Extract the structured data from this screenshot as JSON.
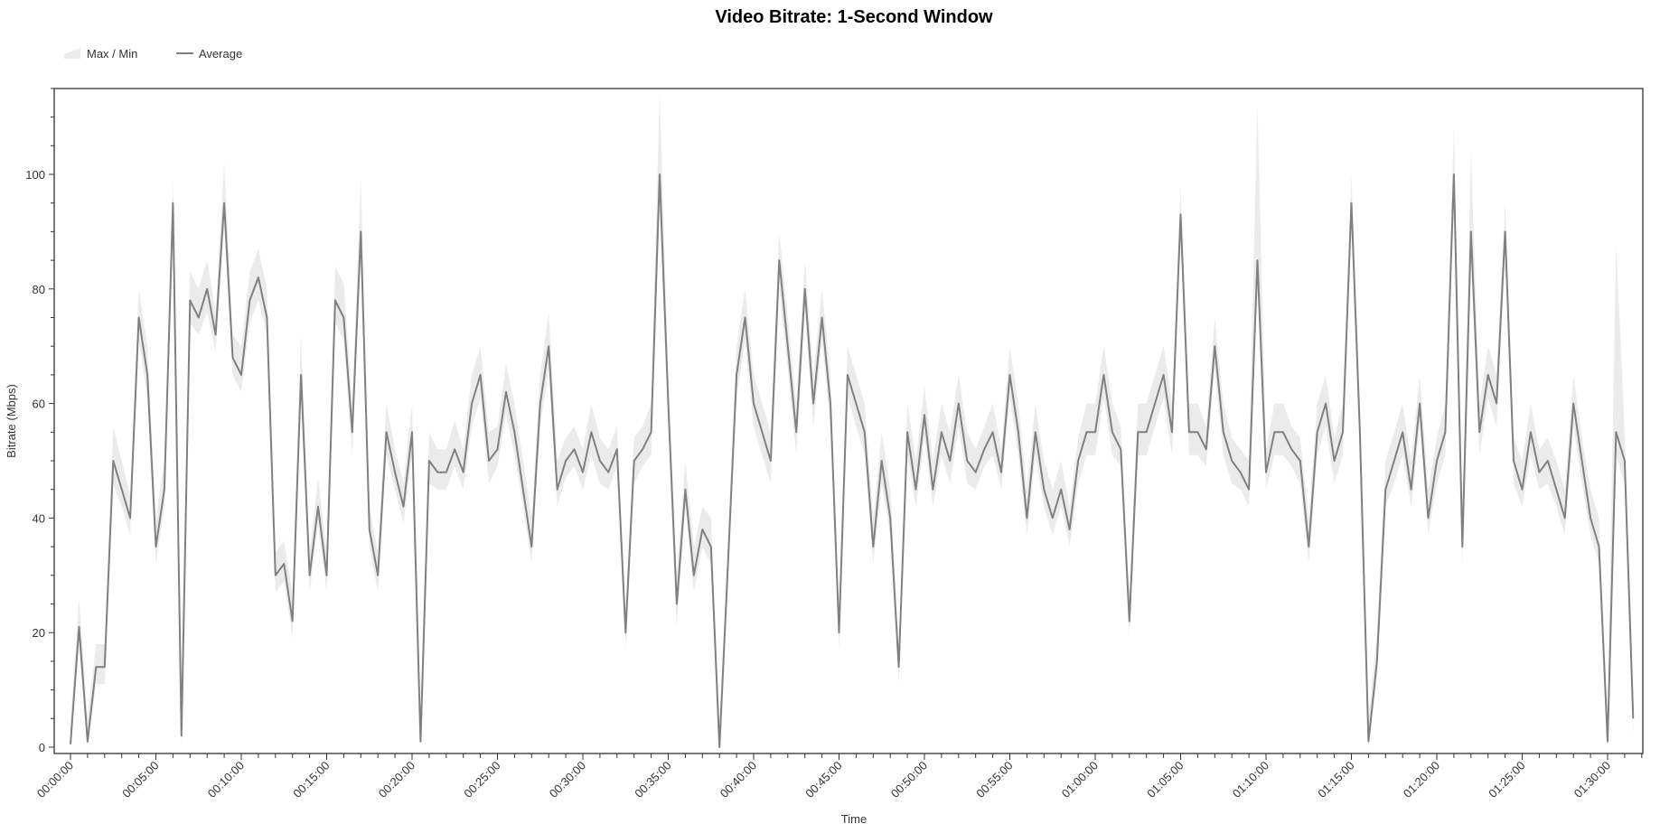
{
  "chart_data": {
    "type": "line",
    "title": "Video Bitrate: 1-Second Window",
    "xlabel": "Time",
    "ylabel": "Bitrate (Mbps)",
    "ylim": [
      0,
      115
    ],
    "y_ticks": [
      "0",
      "20",
      "40",
      "60",
      "80",
      "100"
    ],
    "x_ticks": [
      "00:00:00",
      "00:05:00",
      "00:10:00",
      "00:15:00",
      "00:20:00",
      "00:25:00",
      "00:30:00",
      "00:35:00",
      "00:40:00",
      "00:45:00",
      "00:50:00",
      "00:55:00",
      "01:00:00",
      "01:05:00",
      "01:10:00",
      "01:15:00",
      "01:20:00",
      "01:25:00",
      "01:30:00"
    ],
    "grid": false,
    "legend_position": "top-left",
    "legend": [
      "Max / Min",
      "Average"
    ],
    "colors": {
      "average": "#808080",
      "band": "#ebebeb"
    },
    "x": [
      "00:00:00",
      "00:00:30",
      "00:01:00",
      "00:01:30",
      "00:02:00",
      "00:02:30",
      "00:03:00",
      "00:03:30",
      "00:04:00",
      "00:04:30",
      "00:05:00",
      "00:05:30",
      "00:06:00",
      "00:06:30",
      "00:07:00",
      "00:07:30",
      "00:08:00",
      "00:08:30",
      "00:09:00",
      "00:09:30",
      "00:10:00",
      "00:10:30",
      "00:11:00",
      "00:11:30",
      "00:12:00",
      "00:12:30",
      "00:13:00",
      "00:13:30",
      "00:14:00",
      "00:14:30",
      "00:15:00",
      "00:15:30",
      "00:16:00",
      "00:16:30",
      "00:17:00",
      "00:17:30",
      "00:18:00",
      "00:18:30",
      "00:19:00",
      "00:19:30",
      "00:20:00",
      "00:20:30",
      "00:21:00",
      "00:21:30",
      "00:22:00",
      "00:22:30",
      "00:23:00",
      "00:23:30",
      "00:24:00",
      "00:24:30",
      "00:25:00",
      "00:25:30",
      "00:26:00",
      "00:26:30",
      "00:27:00",
      "00:27:30",
      "00:28:00",
      "00:28:30",
      "00:29:00",
      "00:29:30",
      "00:30:00",
      "00:30:30",
      "00:31:00",
      "00:31:30",
      "00:32:00",
      "00:32:30",
      "00:33:00",
      "00:33:30",
      "00:34:00",
      "00:34:30",
      "00:35:00",
      "00:35:30",
      "00:36:00",
      "00:36:30",
      "00:37:00",
      "00:37:30",
      "00:38:00",
      "00:38:30",
      "00:39:00",
      "00:39:30",
      "00:40:00",
      "00:40:30",
      "00:41:00",
      "00:41:30",
      "00:42:00",
      "00:42:30",
      "00:43:00",
      "00:43:30",
      "00:44:00",
      "00:44:30",
      "00:45:00",
      "00:45:30",
      "00:46:00",
      "00:46:30",
      "00:47:00",
      "00:47:30",
      "00:48:00",
      "00:48:30",
      "00:49:00",
      "00:49:30",
      "00:50:00",
      "00:50:30",
      "00:51:00",
      "00:51:30",
      "00:52:00",
      "00:52:30",
      "00:53:00",
      "00:53:30",
      "00:54:00",
      "00:54:30",
      "00:55:00",
      "00:55:30",
      "00:56:00",
      "00:56:30",
      "00:57:00",
      "00:57:30",
      "00:58:00",
      "00:58:30",
      "00:59:00",
      "00:59:30",
      "01:00:00",
      "01:00:30",
      "01:01:00",
      "01:01:30",
      "01:02:00",
      "01:02:30",
      "01:03:00",
      "01:03:30",
      "01:04:00",
      "01:04:30",
      "01:05:00",
      "01:05:30",
      "01:06:00",
      "01:06:30",
      "01:07:00",
      "01:07:30",
      "01:08:00",
      "01:08:30",
      "01:09:00",
      "01:09:30",
      "01:10:00",
      "01:10:30",
      "01:11:00",
      "01:11:30",
      "01:12:00",
      "01:12:30",
      "01:13:00",
      "01:13:30",
      "01:14:00",
      "01:14:30",
      "01:15:00",
      "01:15:30",
      "01:16:00",
      "01:16:30",
      "01:17:00",
      "01:17:30",
      "01:18:00",
      "01:18:30",
      "01:19:00",
      "01:19:30",
      "01:20:00",
      "01:20:30",
      "01:21:00",
      "01:21:30",
      "01:22:00",
      "01:22:30",
      "01:23:00",
      "01:23:30",
      "01:24:00",
      "01:24:30",
      "01:25:00",
      "01:25:30",
      "01:26:00",
      "01:26:30",
      "01:27:00",
      "01:27:30",
      "01:28:00",
      "01:28:30",
      "01:29:00",
      "01:29:30",
      "01:30:00",
      "01:30:30",
      "01:31:00",
      "01:31:30"
    ],
    "series": [
      {
        "name": "Average",
        "values": [
          0.5,
          21,
          1,
          14,
          14,
          50,
          45,
          40,
          75,
          65,
          35,
          45,
          95,
          2,
          78,
          75,
          80,
          72,
          95,
          68,
          65,
          78,
          82,
          75,
          30,
          32,
          22,
          65,
          30,
          42,
          30,
          78,
          75,
          55,
          90,
          38,
          30,
          55,
          48,
          42,
          55,
          1,
          50,
          48,
          48,
          52,
          48,
          60,
          65,
          50,
          52,
          62,
          55,
          45,
          35,
          60,
          70,
          45,
          50,
          52,
          48,
          55,
          50,
          48,
          52,
          20,
          50,
          52,
          55,
          100,
          60,
          25,
          45,
          30,
          38,
          35,
          0,
          32,
          65,
          75,
          60,
          55,
          50,
          85,
          70,
          55,
          80,
          60,
          75,
          60,
          20,
          65,
          60,
          55,
          35,
          50,
          40,
          14,
          55,
          45,
          58,
          45,
          55,
          50,
          60,
          50,
          48,
          52,
          55,
          48,
          65,
          55,
          40,
          55,
          45,
          40,
          45,
          38,
          50,
          55,
          55,
          65,
          55,
          52,
          22,
          55,
          55,
          60,
          65,
          55,
          93,
          55,
          55,
          52,
          70,
          55,
          50,
          48,
          45,
          85,
          48,
          55,
          55,
          52,
          50,
          35,
          55,
          60,
          50,
          55,
          95,
          55,
          1,
          15,
          45,
          50,
          55,
          45,
          60,
          40,
          50,
          55,
          100,
          35,
          90,
          55,
          65,
          60,
          90,
          50,
          45,
          55,
          48,
          50,
          45,
          40,
          60,
          50,
          40,
          35,
          1,
          55,
          50,
          5
        ]
      },
      {
        "name": "Max / Min",
        "max": [
          4.5,
          26,
          5,
          18,
          18,
          56,
          50,
          44,
          80,
          70,
          40,
          50,
          99,
          6,
          83,
          80,
          85,
          76,
          102,
          72,
          70,
          83,
          87,
          80,
          34,
          36,
          27,
          72,
          34,
          47,
          34,
          84,
          81,
          60,
          99,
          42,
          34,
          60,
          52,
          46,
          60,
          5,
          55,
          52,
          52,
          57,
          52,
          65,
          70,
          55,
          56,
          67,
          60,
          50,
          40,
          65,
          76,
          50,
          54,
          56,
          52,
          60,
          54,
          52,
          56,
          24,
          54,
          56,
          60,
          114,
          65,
          30,
          50,
          35,
          42,
          40,
          4,
          36,
          70,
          80,
          65,
          60,
          55,
          90,
          75,
          60,
          85,
          65,
          80,
          65,
          24,
          70,
          65,
          60,
          40,
          55,
          45,
          18,
          60,
          50,
          63,
          50,
          60,
          55,
          65,
          55,
          52,
          56,
          60,
          52,
          70,
          60,
          45,
          60,
          50,
          45,
          50,
          42,
          54,
          60,
          60,
          70,
          60,
          56,
          27,
          60,
          60,
          65,
          70,
          60,
          98,
          60,
          60,
          56,
          75,
          60,
          54,
          52,
          50,
          112,
          52,
          60,
          60,
          56,
          54,
          40,
          60,
          65,
          54,
          60,
          100,
          60,
          5,
          20,
          50,
          55,
          60,
          50,
          65,
          45,
          54,
          60,
          108,
          40,
          104,
          60,
          70,
          65,
          95,
          54,
          50,
          60,
          52,
          54,
          50,
          45,
          65,
          54,
          45,
          40,
          5,
          88,
          55,
          10
        ],
        "min": [
          0,
          18,
          0,
          11,
          11,
          46,
          42,
          37,
          71,
          61,
          32,
          42,
          91,
          0,
          74,
          72,
          76,
          69,
          91,
          65,
          62,
          74,
          78,
          72,
          27,
          29,
          19,
          61,
          27,
          39,
          27,
          74,
          71,
          51,
          86,
          35,
          27,
          51,
          45,
          39,
          51,
          0,
          46,
          45,
          45,
          49,
          45,
          56,
          61,
          46,
          49,
          58,
          51,
          42,
          32,
          56,
          66,
          42,
          47,
          49,
          45,
          51,
          46,
          45,
          49,
          17,
          46,
          49,
          51,
          94,
          56,
          21,
          42,
          27,
          35,
          32,
          0,
          29,
          61,
          71,
          56,
          51,
          46,
          80,
          66,
          51,
          76,
          56,
          71,
          56,
          17,
          61,
          56,
          51,
          32,
          46,
          37,
          11,
          51,
          42,
          54,
          42,
          51,
          46,
          56,
          46,
          45,
          49,
          51,
          45,
          61,
          51,
          37,
          51,
          42,
          37,
          42,
          35,
          46,
          51,
          51,
          61,
          51,
          49,
          19,
          51,
          51,
          56,
          61,
          51,
          89,
          51,
          51,
          49,
          66,
          51,
          46,
          45,
          42,
          80,
          45,
          51,
          51,
          49,
          46,
          32,
          51,
          56,
          46,
          51,
          91,
          51,
          0,
          12,
          42,
          46,
          51,
          42,
          56,
          37,
          46,
          51,
          95,
          32,
          86,
          51,
          61,
          56,
          86,
          46,
          42,
          51,
          45,
          46,
          42,
          37,
          56,
          46,
          37,
          32,
          0,
          51,
          46,
          2
        ]
      }
    ]
  }
}
